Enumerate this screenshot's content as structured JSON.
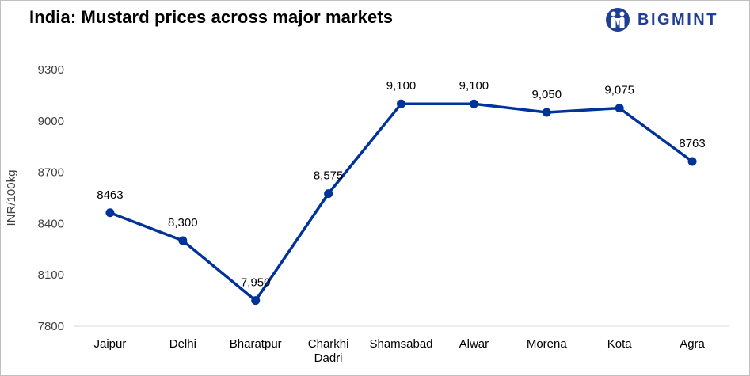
{
  "header": {
    "title": "India: Mustard prices across major markets",
    "brand": "BIGMINT"
  },
  "colors": {
    "series": "#003399",
    "brand": "#1f3e94",
    "axis_text": "#404040",
    "baseline": "#d9d9d9"
  },
  "chart_data": {
    "type": "line",
    "title": "India: Mustard prices across major markets",
    "xlabel": "",
    "ylabel": "INR/100kg",
    "ylim": [
      7800,
      9300
    ],
    "yticks": [
      "7800",
      "8100",
      "8400",
      "8700",
      "9000",
      "9300"
    ],
    "grid": false,
    "categories": [
      [
        "Jaipur"
      ],
      [
        "Delhi"
      ],
      [
        "Bharatpur"
      ],
      [
        "Charkhi",
        "Dadri"
      ],
      [
        "Shamsabad"
      ],
      [
        "Alwar"
      ],
      [
        "Morena"
      ],
      [
        "Kota"
      ],
      [
        "Agra"
      ]
    ],
    "series": [
      {
        "values": [
          8463,
          8300,
          7950,
          8575,
          9100,
          9100,
          9050,
          9075,
          8763
        ],
        "labels": [
          "8463",
          "8,300",
          "7,950",
          "8,575",
          "9,100",
          "9,100",
          "9,050",
          "9,075",
          "8763"
        ]
      }
    ]
  }
}
